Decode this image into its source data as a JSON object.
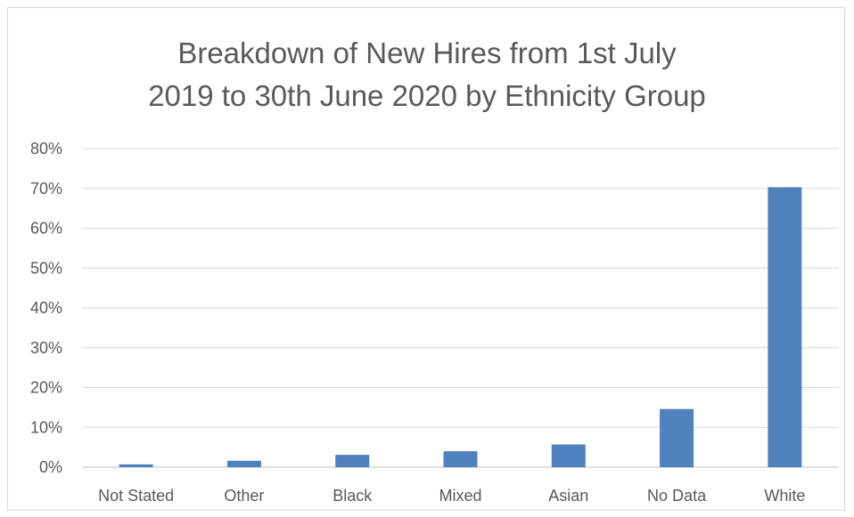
{
  "chart_data": {
    "type": "bar",
    "title_lines": [
      "Breakdown of New Hires from 1st July",
      "2019 to 30th June 2020 by Ethnicity Group"
    ],
    "categories": [
      "Not Stated",
      "Other",
      "Black",
      "Mixed",
      "Asian",
      "No Data",
      "White"
    ],
    "values": [
      0.7,
      1.6,
      3.1,
      4.0,
      5.7,
      14.6,
      70.3
    ],
    "ylim": [
      0,
      80
    ],
    "yticks": [
      "0%",
      "10%",
      "20%",
      "30%",
      "40%",
      "50%",
      "60%",
      "70%",
      "80%"
    ],
    "grid": true,
    "legend": "none",
    "colors": {
      "bar": "#4f81bd",
      "grid": "#d9d9d9",
      "text": "#595959"
    }
  }
}
